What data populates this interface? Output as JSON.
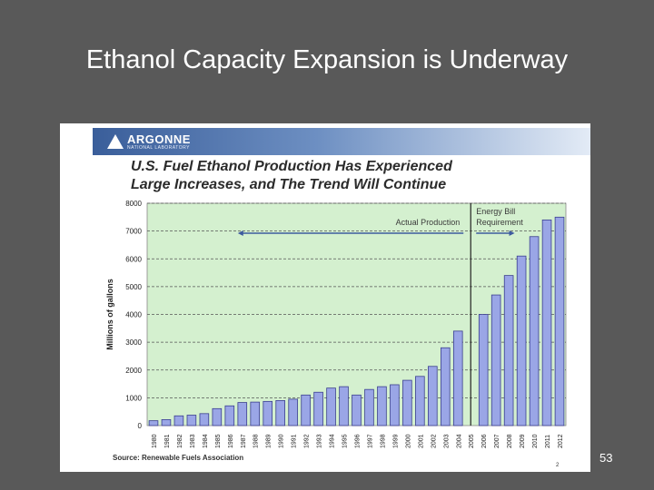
{
  "slide": {
    "title": "Ethanol Capacity Expansion is Underway",
    "number": "53"
  },
  "figure": {
    "logo_name": "ARGONNE",
    "logo_sub": "NATIONAL LABORATORY",
    "headline_line1": "U.S. Fuel Ethanol Production Has Experienced",
    "headline_line2": "Large Increases, and The Trend Will Continue",
    "source": "Source: Renewable Fuels Association",
    "page_mark": "2"
  },
  "colors": {
    "plot_bg": "#d4f0cf",
    "bar_fill": "#9aa6e6",
    "bar_stroke": "#3b3f8f",
    "arrow": "#3d5a9e",
    "banner": "#3a5e9a"
  },
  "chart_data": {
    "type": "bar",
    "title": "U.S. Fuel Ethanol Production Has Experienced Large Increases, and The Trend Will Continue",
    "xlabel": "",
    "ylabel": "Millions of gallons",
    "ylim": [
      0,
      8000
    ],
    "yticks": [
      0,
      1000,
      2000,
      3000,
      4000,
      5000,
      6000,
      7000,
      8000
    ],
    "grid": true,
    "categories": [
      "1980",
      "1981",
      "1982",
      "1983",
      "1984",
      "1985",
      "1986",
      "1987",
      "1988",
      "1989",
      "1990",
      "1991",
      "1992",
      "1993",
      "1994",
      "1995",
      "1996",
      "1997",
      "1998",
      "1999",
      "2000",
      "2001",
      "2002",
      "2003",
      "2004",
      "2005",
      "2006",
      "2007",
      "2008",
      "2009",
      "2010",
      "2011",
      "2012"
    ],
    "values": [
      175,
      215,
      350,
      375,
      430,
      610,
      710,
      830,
      845,
      870,
      900,
      950,
      1100,
      1200,
      1350,
      1400,
      1100,
      1300,
      1400,
      1470,
      1630,
      1770,
      2130,
      2800,
      3400,
      null,
      4000,
      4700,
      5400,
      6100,
      6800,
      7400,
      7500
    ],
    "divider_after": "2005",
    "annotations": [
      {
        "label": "Actual Production",
        "segment": "1980-2004"
      },
      {
        "label_line1": "Energy Bill",
        "label_line2": "Requirement",
        "segment": "2006-2012"
      }
    ]
  }
}
